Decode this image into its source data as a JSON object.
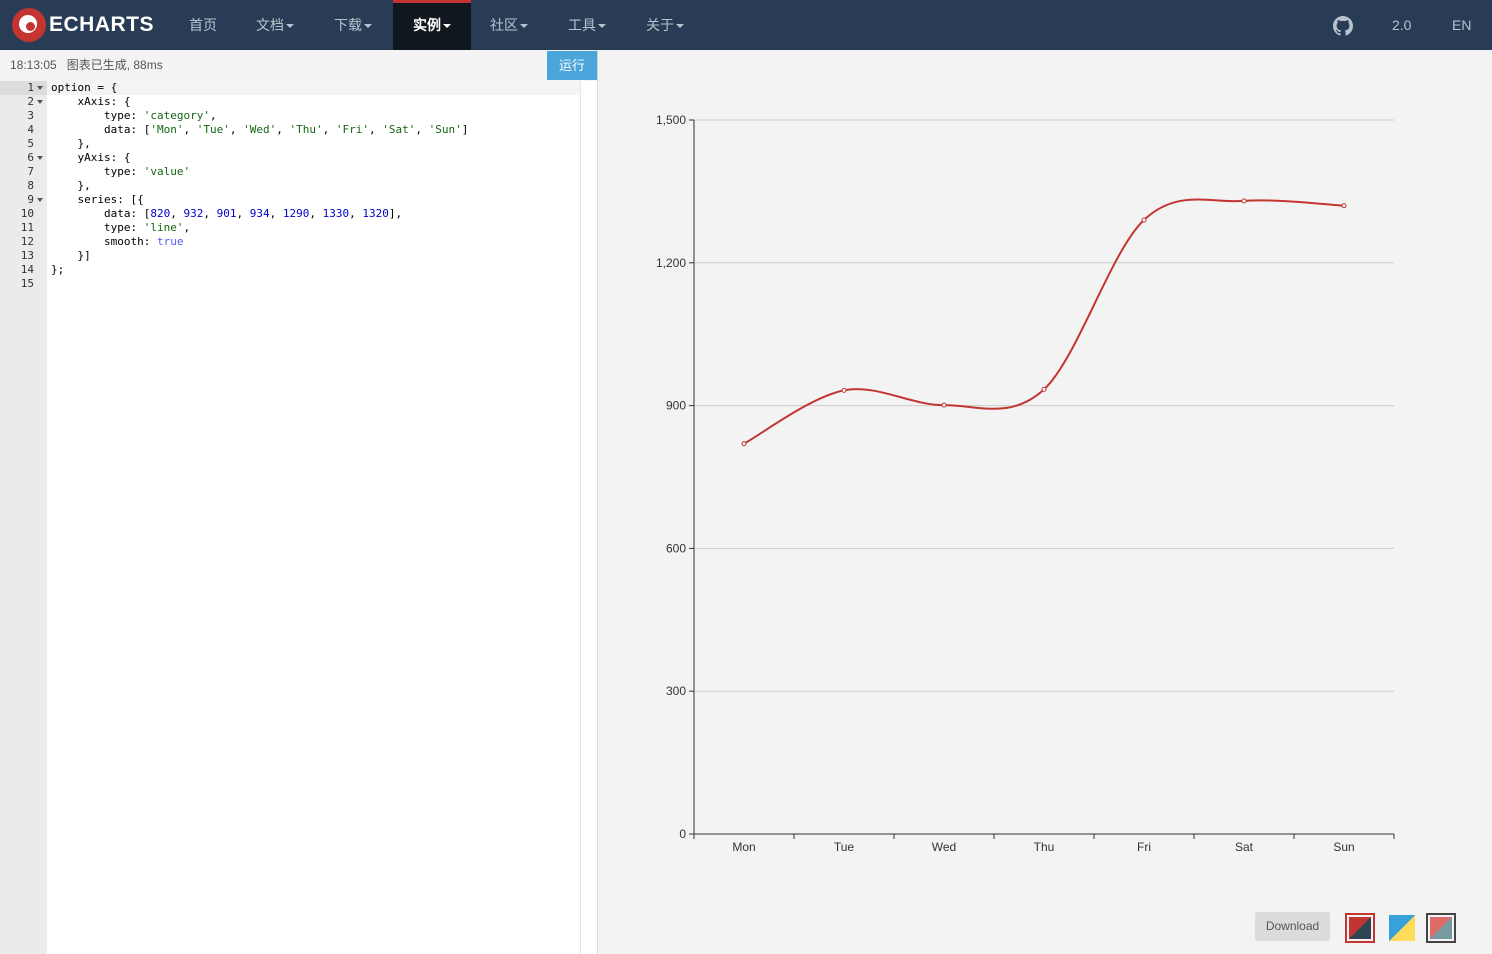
{
  "nav": {
    "logo_text": "ECHARTS",
    "items": [
      {
        "label": "首页",
        "dropdown": false,
        "active": false
      },
      {
        "label": "文档",
        "dropdown": true,
        "active": false
      },
      {
        "label": "下载",
        "dropdown": true,
        "active": false
      },
      {
        "label": "实例",
        "dropdown": true,
        "active": true
      },
      {
        "label": "社区",
        "dropdown": true,
        "active": false
      },
      {
        "label": "工具",
        "dropdown": true,
        "active": false
      },
      {
        "label": "关于",
        "dropdown": true,
        "active": false
      }
    ],
    "version": "2.0",
    "language": "EN",
    "github_icon": "github-icon"
  },
  "editor": {
    "status_text": "18:13:05   图表已生成, 88ms",
    "run_label": "运行",
    "line_numbers": [
      "1",
      "2",
      "3",
      "4",
      "5",
      "6",
      "7",
      "8",
      "9",
      "10",
      "11",
      "12",
      "13",
      "14",
      "15"
    ],
    "code_lines": [
      "option = {",
      "    xAxis: {",
      "        type: 'category',",
      "        data: ['Mon', 'Tue', 'Wed', 'Thu', 'Fri', 'Sat', 'Sun']",
      "    },",
      "    yAxis: {",
      "        type: 'value'",
      "    },",
      "    series: [{",
      "        data: [820, 932, 901, 934, 1290, 1330, 1320],",
      "        type: 'line',",
      "        smooth: true",
      "    }]",
      "};",
      ""
    ],
    "foldable_lines": [
      1,
      2,
      6,
      9
    ],
    "active_line": 1
  },
  "chart_data": {
    "type": "line",
    "categories": [
      "Mon",
      "Tue",
      "Wed",
      "Thu",
      "Fri",
      "Sat",
      "Sun"
    ],
    "series": [
      {
        "values": [
          820,
          932,
          901,
          934,
          1290,
          1330,
          1320
        ],
        "smooth": true,
        "color": "#c23531"
      }
    ],
    "y_ticks": [
      "0",
      "300",
      "600",
      "900",
      "1,200",
      "1,500"
    ],
    "ylim": [
      0,
      1500
    ],
    "grid": true
  },
  "toolbar": {
    "download_label": "Download",
    "themes": [
      "theme-default-icon",
      "theme-light-icon",
      "theme-dark-icon"
    ]
  },
  "colors": {
    "nav_bg": "#293c55",
    "accent": "#c23531",
    "run_button": "#4aa5da"
  }
}
